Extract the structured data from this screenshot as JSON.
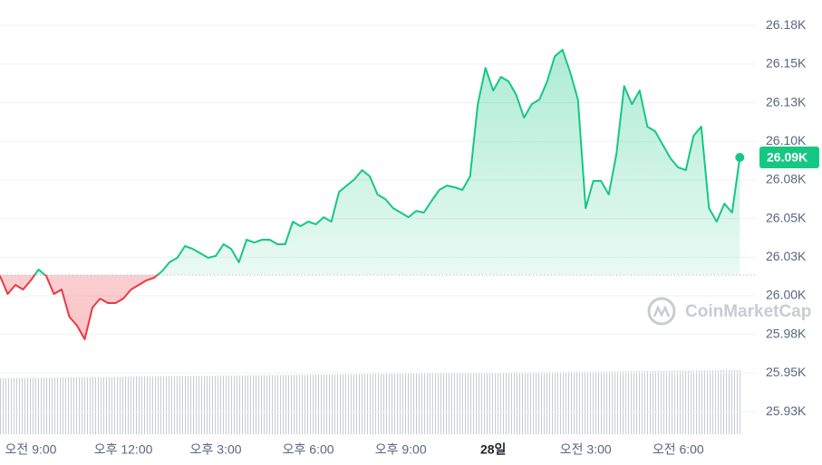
{
  "chart_data": {
    "type": "line",
    "watermark": "CoinMarketCap",
    "current_label": "26.09K",
    "color_up": "#16c784",
    "color_down": "#ea3943",
    "reference_line": 26.0135,
    "grid": true,
    "xlim": [
      0,
      98.2
    ],
    "xticks": [
      {
        "value": 4,
        "label": "오전 9:00"
      },
      {
        "value": 16,
        "label": "오후 12:00"
      },
      {
        "value": 28,
        "label": "오후 3:00"
      },
      {
        "value": 40,
        "label": "오후 6:00"
      },
      {
        "value": 52,
        "label": "오후 9:00"
      },
      {
        "value": 64,
        "label": "28일"
      },
      {
        "value": 76,
        "label": "오전 3:00"
      },
      {
        "value": 88,
        "label": "오전 6:00"
      }
    ],
    "ylim": [
      25.9104,
      26.1915
    ],
    "yticks": [
      {
        "value": 25.925,
        "label": "25.93K"
      },
      {
        "value": 25.95,
        "label": "25.95K"
      },
      {
        "value": 25.975,
        "label": "25.98K"
      },
      {
        "value": 26.0,
        "label": "26.00K"
      },
      {
        "value": 26.025,
        "label": "26.03K"
      },
      {
        "value": 26.05,
        "label": "26.05K"
      },
      {
        "value": 26.075,
        "label": "26.08K"
      },
      {
        "value": 26.1,
        "label": "26.10K"
      },
      {
        "value": 26.125,
        "label": "26.13K"
      },
      {
        "value": 26.15,
        "label": "26.15K"
      },
      {
        "value": 26.175,
        "label": "26.18K"
      }
    ],
    "series": [
      {
        "values": [
          26.0129,
          26.0012,
          26.007,
          26.0041,
          26.01,
          26.017,
          26.0129,
          26.0012,
          26.0041,
          25.9865,
          25.9807,
          25.9719,
          25.9924,
          25.9982,
          25.9953,
          25.9953,
          25.9982,
          26.0041,
          26.007,
          26.01,
          26.0117,
          26.0158,
          26.0217,
          26.0246,
          26.0322,
          26.0304,
          26.0275,
          26.0246,
          26.0258,
          26.0334,
          26.0304,
          26.0217,
          26.0363,
          26.0345,
          26.0363,
          26.0363,
          26.0334,
          26.0334,
          26.048,
          26.0451,
          26.048,
          26.0463,
          26.0509,
          26.048,
          26.0673,
          26.0714,
          26.0755,
          26.0814,
          26.0773,
          26.0656,
          26.0626,
          26.0568,
          26.0539,
          26.0509,
          26.055,
          26.0539,
          26.0615,
          26.0685,
          26.0714,
          26.0703,
          26.0685,
          26.0773,
          26.1241,
          26.1475,
          26.1329,
          26.1417,
          26.1388,
          26.13,
          26.1153,
          26.1241,
          26.1271,
          26.1388,
          26.1551,
          26.1593,
          26.1446,
          26.1271,
          26.0568,
          26.0744,
          26.0744,
          26.0656,
          26.0919,
          26.1358,
          26.1241,
          26.1329,
          26.1095,
          26.1066,
          26.0978,
          26.089,
          26.0831,
          26.0814,
          26.1036,
          26.1095,
          26.0568,
          26.048,
          26.0597,
          26.0539,
          26.0896
        ]
      }
    ]
  }
}
